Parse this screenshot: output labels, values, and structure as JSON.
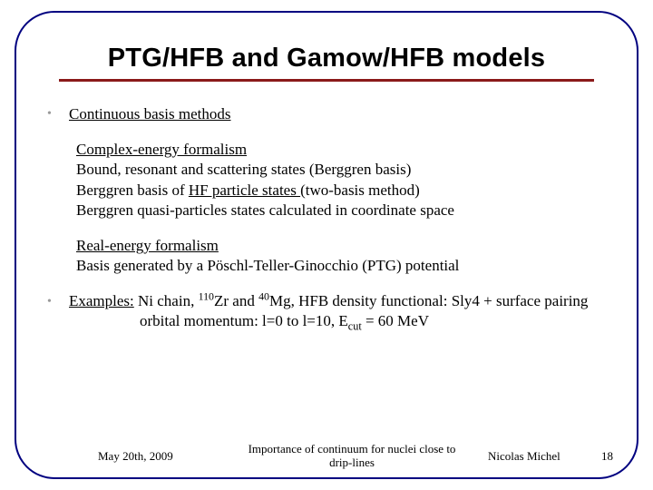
{
  "title": "PTG/HFB and Gamow/HFB models",
  "rule_color": "#8b1a1a",
  "border_color": "#000080",
  "bullet1": "Continuous basis methods",
  "complex": {
    "heading": "Complex-energy formalism",
    "line1_a": "Bound, resonant ",
    "line1_b": "and",
    "line1_c": " scattering ",
    "line1_d": "states (Berggren basis)",
    "line2_a": "Berggren basis of ",
    "line2_b": "HF particle states ",
    "line2_c": " (two-basis method)",
    "line3_a": "Berggren ",
    "line3_b": "quasi-particles states ",
    "line3_c": "calculated in coordinate space"
  },
  "real": {
    "heading": "Real-energy formalism",
    "line1_a": "Basis generated by a ",
    "line1_b": "Pöschl-Teller-Ginocchio (PTG) potential"
  },
  "examples": {
    "label": "Examples:",
    "l1_a": " Ni chain, ",
    "sup1": "110",
    "l1_b": "Zr and ",
    "sup2": "40",
    "l1_c": "Mg, HFB density functional: ",
    "l1_d": "Sly4 + surface pairing",
    "l2_a": "orbital momentum: l=0 to l=10, E",
    "l2_sub": "cut",
    "l2_b": " = 60 MeV"
  },
  "footer": {
    "date": "May 20th, 2009",
    "mid1": "Importance of continuum for nuclei close to",
    "mid2": "drip-lines",
    "author": "Nicolas Michel",
    "page": "18"
  }
}
